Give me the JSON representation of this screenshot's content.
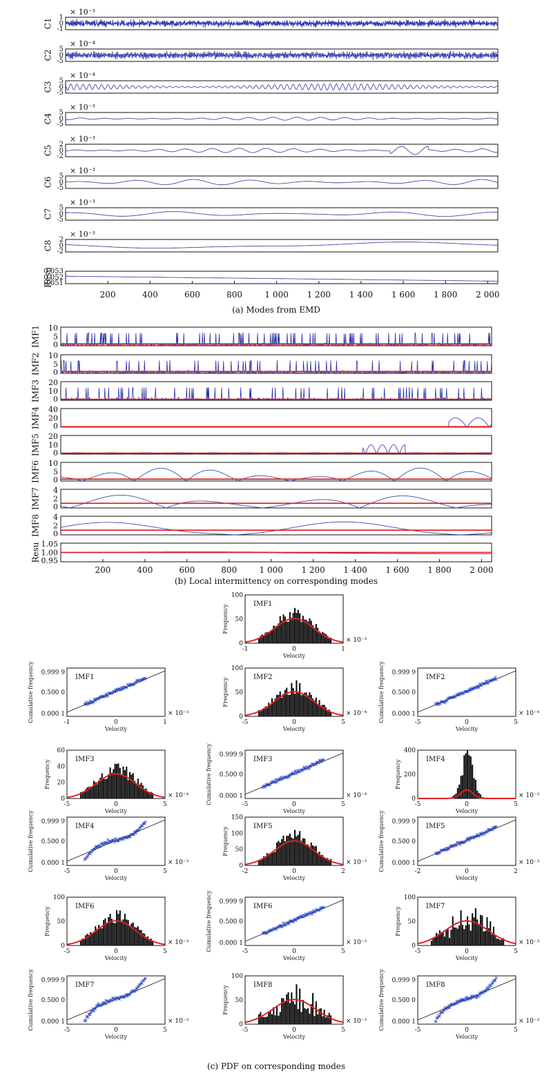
{
  "chart_data": [
    {
      "type": "line",
      "caption": "(a) Modes from EMD",
      "x_ticks": [
        "200",
        "400",
        "600",
        "800",
        "1 000",
        "1 200",
        "1 400",
        "1 600",
        "1 800",
        "2 000"
      ],
      "xlim": [
        0,
        2048
      ],
      "panels": [
        {
          "name": "C1",
          "scale": "× 10⁻³",
          "yticks": [
            "1",
            "0",
            "-1"
          ],
          "ylim": [
            -1,
            1
          ],
          "amplitude": 0.65,
          "frequency": 210,
          "style": "noise"
        },
        {
          "name": "C2",
          "scale": "× 10⁻⁴",
          "yticks": [
            "5",
            "0",
            "-5"
          ],
          "ylim": [
            -5,
            5
          ],
          "amplitude": 3.5,
          "frequency": 120,
          "style": "noise"
        },
        {
          "name": "C3",
          "scale": "× 10⁻⁴",
          "yticks": [
            "5",
            "0",
            "-5"
          ],
          "ylim": [
            -5,
            5
          ],
          "amplitude": 2.6,
          "frequency": 70,
          "style": "osc"
        },
        {
          "name": "C4",
          "scale": "× 10⁻³",
          "yticks": [
            "5",
            "0",
            "-5"
          ],
          "ylim": [
            -5,
            5
          ],
          "amplitude": 1.2,
          "frequency": 18,
          "style": "osc"
        },
        {
          "name": "C5",
          "scale": "× 10⁻³",
          "yticks": [
            "2",
            "0",
            "-2"
          ],
          "ylim": [
            -2,
            2
          ],
          "amplitude": 0.7,
          "frequency": 16,
          "style": "osc"
        },
        {
          "name": "C6",
          "scale": "× 10⁻³",
          "yticks": [
            "5",
            "0",
            "-5"
          ],
          "ylim": [
            -5,
            5
          ],
          "amplitude": 2.2,
          "frequency": 7.5,
          "style": "osc"
        },
        {
          "name": "C7",
          "scale": "× 10⁻³",
          "yticks": [
            "5",
            "0",
            "-5"
          ],
          "ylim": [
            -5,
            5
          ],
          "amplitude": 2.0,
          "frequency": 4,
          "style": "osc"
        },
        {
          "name": "C8",
          "scale": "× 10⁻³",
          "yticks": [
            "2",
            "0",
            "-2"
          ],
          "ylim": [
            -2,
            2
          ],
          "amplitude": 1.2,
          "frequency": 1,
          "style": "osc"
        },
        {
          "name": "Resu",
          "scale": "",
          "yticks": [
            "0.053",
            "0.052",
            "0.051"
          ],
          "ylim": [
            0.051,
            0.053
          ],
          "amplitude": 0,
          "frequency": 0,
          "style": "trend"
        }
      ]
    },
    {
      "type": "line",
      "caption": "(b) Local intermittency on corresponding modes",
      "x_ticks": [
        "200",
        "400",
        "600",
        "800",
        "1 000",
        "1 200",
        "1 400",
        "1 600",
        "1 800",
        "2 000"
      ],
      "xlim": [
        0,
        2048
      ],
      "panels": [
        {
          "name": "IMF1",
          "yticks": [
            "10",
            "5",
            "0"
          ],
          "ylim": [
            0,
            10
          ],
          "threshold": 1,
          "style": "spiky"
        },
        {
          "name": "IMF2",
          "yticks": [
            "10",
            "5",
            "0"
          ],
          "ylim": [
            0,
            10
          ],
          "threshold": 1,
          "style": "spiky"
        },
        {
          "name": "IMF3",
          "yticks": [
            "20",
            "10",
            "0"
          ],
          "ylim": [
            0,
            20
          ],
          "threshold": 1,
          "style": "spiky"
        },
        {
          "name": "IMF4",
          "yticks": [
            "40",
            "20",
            "0"
          ],
          "ylim": [
            0,
            40
          ],
          "threshold": 1,
          "style": "late"
        },
        {
          "name": "IMF5",
          "yticks": [
            "20",
            "10",
            "0"
          ],
          "ylim": [
            0,
            20
          ],
          "threshold": 1,
          "style": "bumps"
        },
        {
          "name": "IMF6",
          "yticks": [
            "10",
            "5",
            "0"
          ],
          "ylim": [
            0,
            10
          ],
          "threshold": 1,
          "style": "wave"
        },
        {
          "name": "IMF7",
          "yticks": [
            "4",
            "2",
            "0"
          ],
          "ylim": [
            0,
            4
          ],
          "threshold": 1,
          "style": "wave"
        },
        {
          "name": "IMF8",
          "yticks": [
            "4",
            "2",
            "0"
          ],
          "ylim": [
            0,
            4
          ],
          "threshold": 1,
          "style": "wave"
        },
        {
          "name": "Resu",
          "yticks": [
            "1.05",
            "1.00",
            "0.95"
          ],
          "ylim": [
            0.95,
            1.05
          ],
          "threshold": 1,
          "style": "flat"
        }
      ]
    },
    {
      "type": "bar",
      "caption": "(c) PDF on corresponding modes",
      "x_label": "Velocity",
      "histogram_ylabel": "Frequency",
      "probability_ylabel": "Cumulative frequency",
      "probability_yticks": [
        "0.999 9",
        "0.500 0",
        "0.000 1"
      ],
      "panels": [
        {
          "name": "IMF1",
          "kind": "histogram",
          "scale": "× 10⁻³",
          "xticks": [
            "-1",
            "0",
            "1"
          ],
          "xlim": [
            -1,
            1
          ],
          "yticks": [
            "100",
            "50",
            "0"
          ],
          "ylim": [
            0,
            100
          ]
        },
        {
          "name": "IMF1",
          "kind": "probability",
          "scale": "× 10⁻³",
          "xticks": [
            "-1",
            "0",
            "1"
          ],
          "xlim": [
            -1,
            1
          ]
        },
        {
          "name": "IMF2",
          "kind": "histogram",
          "scale": "× 10⁻⁴",
          "xticks": [
            "-5",
            "0",
            "5"
          ],
          "xlim": [
            -5,
            5
          ],
          "yticks": [
            "100",
            "50",
            "0"
          ],
          "ylim": [
            0,
            100
          ]
        },
        {
          "name": "IMF2",
          "kind": "probability",
          "scale": "× 10⁻⁴",
          "xticks": [
            "-5",
            "0",
            "5"
          ],
          "xlim": [
            -5,
            5
          ]
        },
        {
          "name": "IMF3",
          "kind": "histogram",
          "scale": "× 10⁻⁴",
          "xticks": [
            "-5",
            "0",
            "5"
          ],
          "xlim": [
            -5,
            5
          ],
          "yticks": [
            "60",
            "40",
            "20",
            "0"
          ],
          "ylim": [
            0,
            60
          ]
        },
        {
          "name": "IMF3",
          "kind": "probability",
          "scale": "× 10⁻⁴",
          "xticks": [
            "-5",
            "0",
            "5"
          ],
          "xlim": [
            -5,
            5
          ]
        },
        {
          "name": "IMF4",
          "kind": "histogram",
          "scale": "× 10⁻³",
          "xticks": [
            "-5",
            "0",
            "5"
          ],
          "xlim": [
            -5,
            5
          ],
          "yticks": [
            "400",
            "200",
            "0"
          ],
          "ylim": [
            0,
            400
          ]
        },
        {
          "name": "IMF4",
          "kind": "probability",
          "scale": "× 10⁻³",
          "xticks": [
            "-5",
            "0",
            "5"
          ],
          "xlim": [
            -5,
            5
          ]
        },
        {
          "name": "IMF5",
          "kind": "histogram",
          "scale": "× 10⁻³",
          "xticks": [
            "-2",
            "0",
            "2"
          ],
          "xlim": [
            -2,
            2
          ],
          "yticks": [
            "150",
            "100",
            "50",
            "0"
          ],
          "ylim": [
            0,
            150
          ]
        },
        {
          "name": "IMF5",
          "kind": "probability",
          "scale": "× 10⁻³",
          "xticks": [
            "-2",
            "0",
            "2"
          ],
          "xlim": [
            -2,
            2
          ]
        },
        {
          "name": "IMF6",
          "kind": "histogram",
          "scale": "× 10⁻³",
          "xticks": [
            "-5",
            "0",
            "5"
          ],
          "xlim": [
            -5,
            5
          ],
          "yticks": [
            "100",
            "50",
            "0"
          ],
          "ylim": [
            0,
            100
          ]
        },
        {
          "name": "IMF6",
          "kind": "probability",
          "scale": "× 10⁻³",
          "xticks": [
            "-5",
            "0",
            "5"
          ],
          "xlim": [
            -5,
            5
          ]
        },
        {
          "name": "IMF7",
          "kind": "histogram",
          "scale": "× 10⁻³",
          "xticks": [
            "-5",
            "0",
            "5"
          ],
          "xlim": [
            -5,
            5
          ],
          "yticks": [
            "100",
            "50",
            "0"
          ],
          "ylim": [
            0,
            100
          ]
        },
        {
          "name": "IMF7",
          "kind": "probability",
          "scale": "× 10⁻³",
          "xticks": [
            "-5",
            "0",
            "5"
          ],
          "xlim": [
            -5,
            5
          ]
        },
        {
          "name": "IMF8",
          "kind": "histogram",
          "scale": "× 10⁻³",
          "xticks": [
            "-5",
            "0",
            "5"
          ],
          "xlim": [
            -5,
            5
          ],
          "yticks": [
            "100",
            "50",
            "0"
          ],
          "ylim": [
            0,
            100
          ]
        },
        {
          "name": "IMF8",
          "kind": "probability",
          "scale": "× 10⁻³",
          "xticks": [
            "-5",
            "0",
            "5"
          ],
          "xlim": [
            -5,
            5
          ]
        }
      ]
    }
  ],
  "colors": {
    "signal": "#2a34a8",
    "threshold": "#e02020",
    "fit": "#e02020",
    "bars": "#111111",
    "points": "#2a44c0"
  }
}
